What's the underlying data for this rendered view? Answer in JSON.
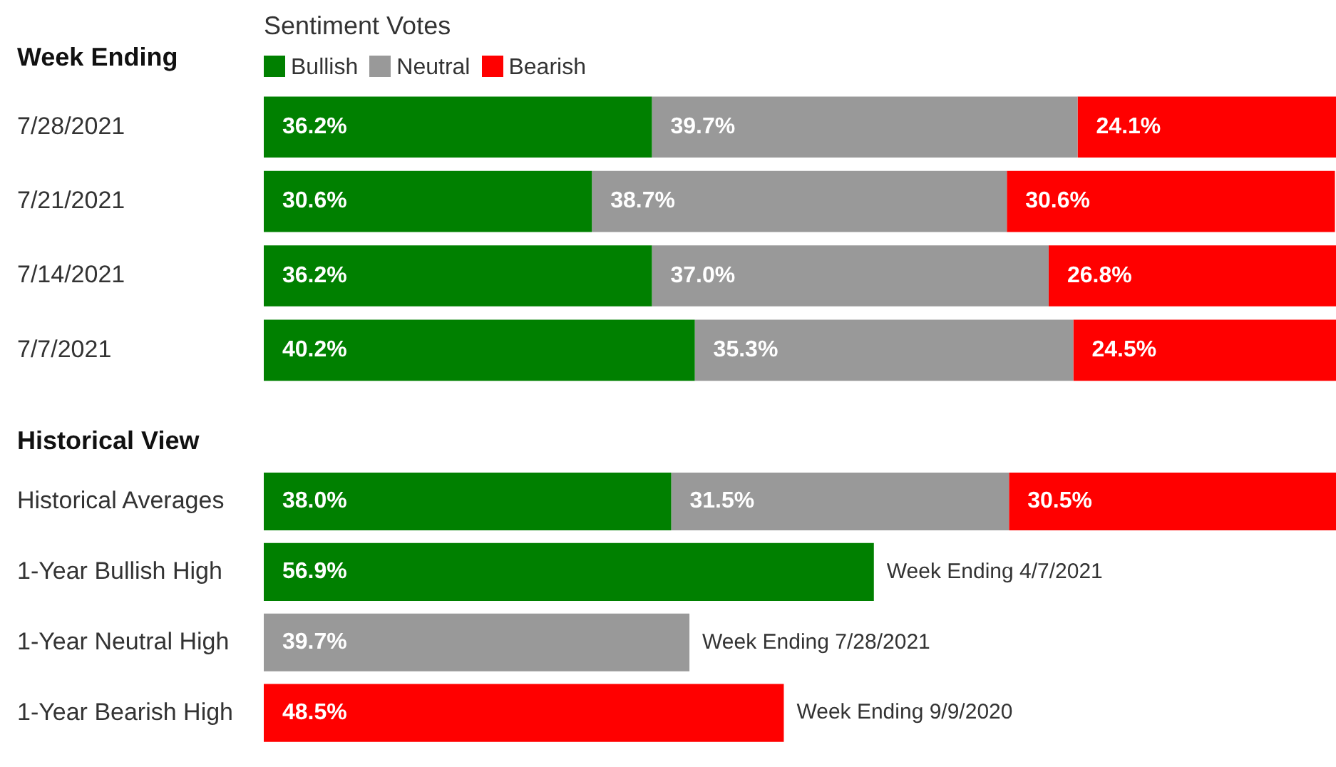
{
  "chart_data": [
    {
      "type": "bar",
      "orientation": "horizontal",
      "stacked": true,
      "ylabel": "Week Ending",
      "legend_title": "Sentiment Votes",
      "legend": "top",
      "tick_labels": "y",
      "xlim": [
        0,
        100
      ],
      "categories": [
        "7/28/2021",
        "7/21/2021",
        "7/14/2021",
        "7/7/2021"
      ],
      "series": [
        {
          "name": "Bullish",
          "color": "#008000",
          "values": [
            36.2,
            30.6,
            36.2,
            40.2
          ],
          "value_labels": [
            "36.2%",
            "30.6%",
            "36.2%",
            "40.2%"
          ]
        },
        {
          "name": "Neutral",
          "color": "#999999",
          "values": [
            39.7,
            38.7,
            37.0,
            35.3
          ],
          "value_labels": [
            "39.7%",
            "38.7%",
            "37.0%",
            "35.3%"
          ]
        },
        {
          "name": "Bearish",
          "color": "#ff0000",
          "values": [
            24.1,
            30.6,
            26.8,
            24.5
          ],
          "value_labels": [
            "24.1%",
            "30.6%",
            "26.8%",
            "24.5%"
          ]
        }
      ]
    },
    {
      "type": "bar",
      "orientation": "horizontal",
      "stacked": true,
      "ylabel": "Historical View",
      "tick_labels": "y",
      "xlim": [
        0,
        100
      ],
      "categories": [
        "Historical Averages",
        "1-Year Bullish High",
        "1-Year Neutral High",
        "1-Year Bearish High"
      ],
      "series": [
        {
          "color": "#008000",
          "values": [
            38.0,
            56.9,
            null,
            null
          ],
          "value_labels": [
            "38.0%",
            "56.9%",
            null,
            null
          ]
        },
        {
          "color": "#999999",
          "values": [
            31.5,
            null,
            39.7,
            null
          ],
          "value_labels": [
            "31.5%",
            null,
            "39.7%",
            null
          ]
        },
        {
          "color": "#ff0000",
          "values": [
            30.5,
            null,
            null,
            48.5
          ],
          "value_labels": [
            "30.5%",
            null,
            null,
            "48.5%"
          ]
        }
      ],
      "annotations": [
        {
          "text": "Week Ending 4/7/2021",
          "x": 56.9,
          "y": "1-Year Bullish High"
        },
        {
          "text": "Week Ending 7/28/2021",
          "x": 39.7,
          "y": "1-Year Neutral High"
        },
        {
          "text": "Week Ending 9/9/2020",
          "x": 48.5,
          "y": "1-Year Bearish High"
        }
      ]
    }
  ]
}
